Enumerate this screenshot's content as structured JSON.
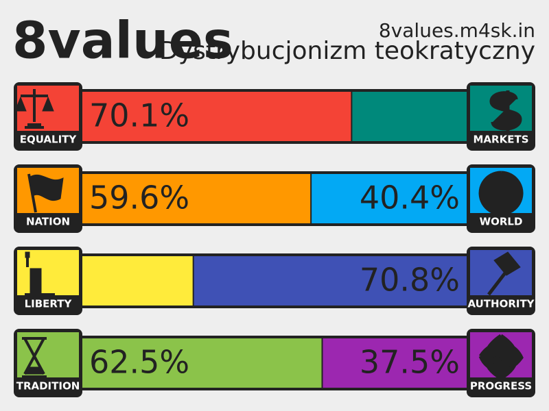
{
  "chart_data": {
    "type": "bar",
    "title": "8values",
    "subtitle": "Dystrybucjonizm teokratyczny",
    "source": "8values.m4sk.in",
    "xlim": [
      0,
      100
    ],
    "rows": [
      {
        "left": "EQUALITY",
        "right": "MARKETS",
        "values": [
          70.1,
          29.9
        ],
        "value_labels": [
          "70.1%",
          null
        ],
        "colors": [
          "#f44336",
          "#00897b"
        ]
      },
      {
        "left": "NATION",
        "right": "WORLD",
        "values": [
          59.6,
          40.4
        ],
        "value_labels": [
          "59.6%",
          "40.4%"
        ],
        "colors": [
          "#ff9800",
          "#03a9f4"
        ]
      },
      {
        "left": "LIBERTY",
        "right": "AUTHORITY",
        "values": [
          29.2,
          70.8
        ],
        "value_labels": [
          null,
          "70.8%"
        ],
        "colors": [
          "#ffeb3b",
          "#3f51b5"
        ]
      },
      {
        "left": "TRADITION",
        "right": "PROGRESS",
        "values": [
          62.5,
          37.5
        ],
        "value_labels": [
          "62.5%",
          "37.5%"
        ],
        "colors": [
          "#8bc34a",
          "#9c27b0"
        ]
      }
    ]
  }
}
